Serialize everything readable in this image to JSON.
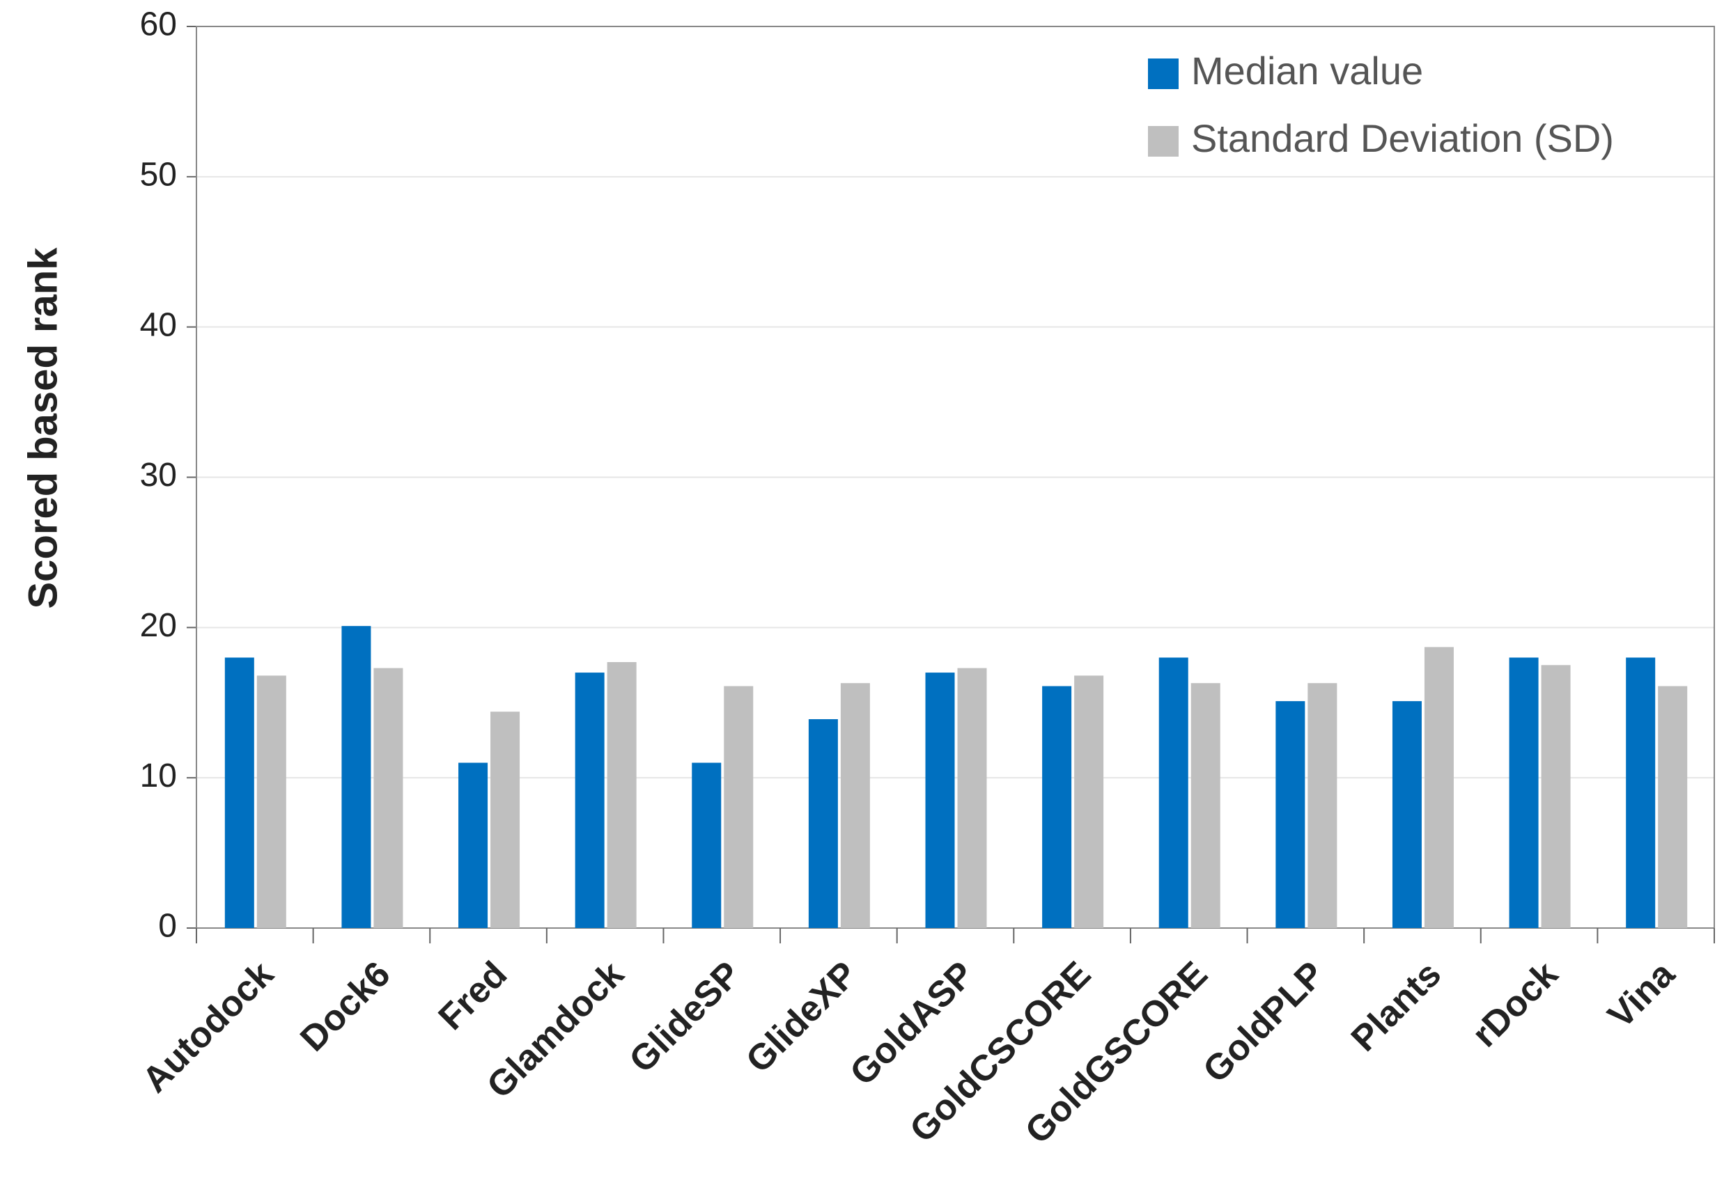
{
  "chart_data": {
    "type": "bar",
    "y_label": "Scored based rank",
    "categories": [
      "Autodock",
      "Dock6",
      "Fred",
      "Glamdock",
      "GlideSP",
      "GlideXP",
      "GoldASP",
      "GoldCSCORE",
      "GoldGSCORE",
      "GoldPLP",
      "Plants",
      "rDock",
      "Vina"
    ],
    "series": [
      {
        "name": "Median value",
        "color": "#0070c0",
        "values": [
          18,
          20.1,
          11,
          17,
          11,
          13.9,
          17,
          16.1,
          18,
          15.1,
          15.1,
          18,
          18
        ]
      },
      {
        "name": "Standard Deviation (SD)",
        "color": "#bfbfbf",
        "values": [
          16.8,
          17.3,
          14.4,
          17.7,
          16.1,
          16.3,
          17.3,
          16.8,
          16.3,
          16.3,
          18.7,
          17.5,
          16.1
        ]
      }
    ],
    "ylim": [
      0,
      60
    ],
    "yticks": [
      0,
      10,
      20,
      30,
      40,
      50,
      60
    ],
    "grid": true,
    "legend": "top-right"
  }
}
